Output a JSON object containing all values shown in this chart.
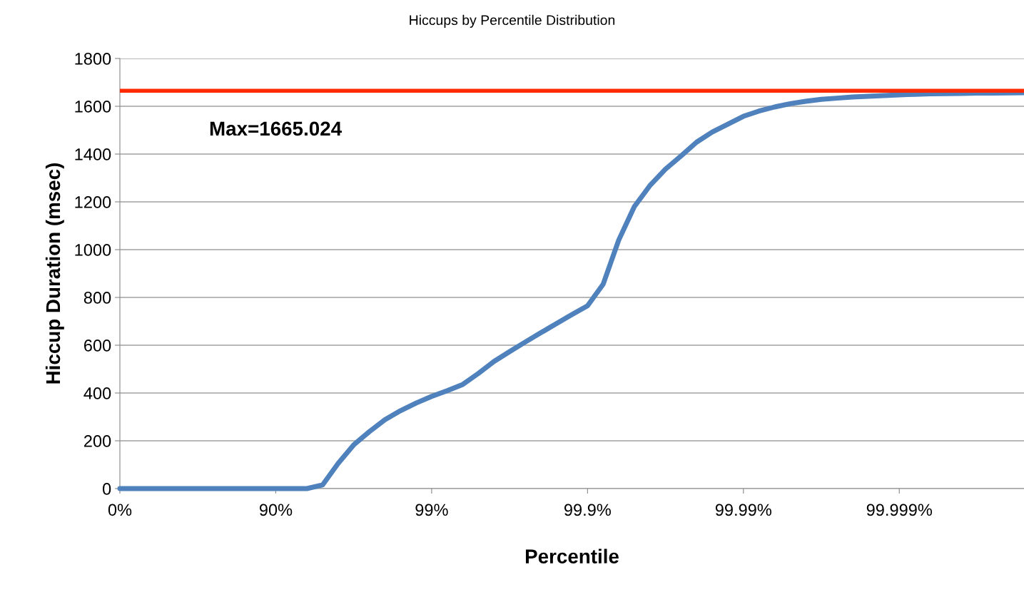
{
  "chart_data": {
    "type": "line",
    "title": "Hiccups by Percentile Distribution",
    "xlabel": "Percentile",
    "ylabel": "Hiccup Duration (msec)",
    "categories": [
      "0%",
      null,
      null,
      null,
      null,
      null,
      null,
      null,
      null,
      null,
      "90%",
      null,
      null,
      null,
      null,
      null,
      null,
      null,
      null,
      null,
      "99%",
      null,
      null,
      null,
      null,
      null,
      null,
      null,
      null,
      null,
      "99.9%",
      null,
      null,
      null,
      null,
      null,
      null,
      null,
      null,
      null,
      "99.99%",
      null,
      null,
      null,
      null,
      null,
      null,
      null,
      null,
      null,
      "99.999%",
      null,
      null,
      null,
      null,
      null,
      null,
      null,
      null
    ],
    "series": [
      {
        "color": "#4f81bd",
        "values": [
          0,
          0,
          0,
          0,
          0,
          0,
          0,
          0,
          0,
          0,
          0,
          0,
          0,
          15,
          105,
          183,
          238,
          288,
          326,
          358,
          386,
          410,
          436,
          482,
          532,
          573,
          613,
          652,
          690,
          728,
          765,
          855,
          1040,
          1180,
          1268,
          1337,
          1392,
          1450,
          1492,
          1525,
          1558,
          1580,
          1597,
          1611,
          1621,
          1629,
          1634,
          1639,
          1642,
          1645,
          1648,
          1650,
          1652,
          1653,
          1654,
          1655,
          1655,
          1656,
          1657
        ]
      }
    ],
    "ylim": [
      0,
      1800
    ],
    "yticks": [
      0,
      200,
      400,
      600,
      800,
      1000,
      1200,
      1400,
      1600,
      1800
    ],
    "ref_lines": [
      {
        "axis": "y",
        "value": 1665.024,
        "label": "Max=1665.024",
        "color": "#ff2a00"
      }
    ],
    "grid": "y",
    "legend": false,
    "marker": "none",
    "line_style": "solid"
  }
}
